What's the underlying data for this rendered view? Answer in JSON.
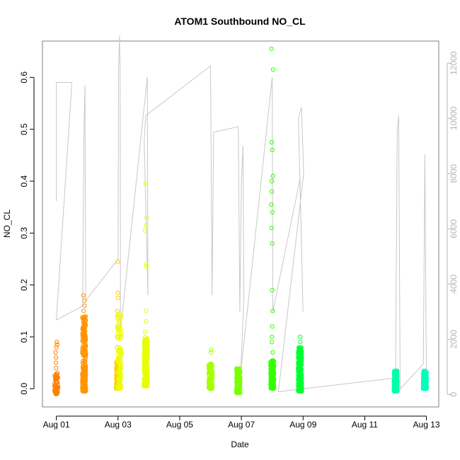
{
  "chart_data": {
    "type": "scatter",
    "title": "ATOM1 Southbound NO_CL",
    "xlabel": "Date",
    "ylabel": "NO_CL",
    "x_tick_labels": [
      "Aug 01",
      "Aug 03",
      "Aug 05",
      "Aug 07",
      "Aug 09",
      "Aug 11",
      "Aug 13"
    ],
    "x_tick_days": [
      1,
      3,
      5,
      7,
      9,
      11,
      13
    ],
    "x_range_days": [
      0.55,
      13.4
    ],
    "ylim": [
      -0.035,
      0.67
    ],
    "y_ticks": [
      "0.0",
      "0.1",
      "0.2",
      "0.3",
      "0.4",
      "0.5",
      "0.6"
    ],
    "y2_ticks": [
      "0",
      "2000",
      "4000",
      "6000",
      "8000",
      "10000",
      "12000"
    ],
    "y2lim": [
      -450,
      12800
    ],
    "colors": {
      "axis": "#000000",
      "frame": "#808080",
      "secondary_line": "#c8c8c8",
      "secondary_axis": "#b5b5b5"
    },
    "scatter_clusters": [
      {
        "day": 1.0,
        "color": "#ff8000",
        "base_low": -0.01,
        "base_high": 0.03,
        "n": 70,
        "outliers": [
          0.02,
          0.04,
          0.05,
          0.06,
          0.07,
          0.08,
          0.085,
          0.09
        ]
      },
      {
        "day": 1.9,
        "color": "#ff9400",
        "base_low": -0.005,
        "base_high": 0.14,
        "n": 240,
        "outliers": [
          0.15,
          0.16,
          0.17,
          0.18
        ]
      },
      {
        "day": 3.0,
        "color": "#ffd000",
        "base_low": 0.0,
        "base_high": 0.06,
        "n": 120,
        "outliers": [
          0.08,
          0.1,
          0.12,
          0.14,
          0.15,
          0.175,
          0.185,
          0.245
        ]
      },
      {
        "day": 3.05,
        "color": "#ecff00",
        "base_low": 0.0,
        "base_high": 0.15,
        "n": 90,
        "outliers": []
      },
      {
        "day": 3.9,
        "color": "#e6ff00",
        "base_low": 0.005,
        "base_high": 0.1,
        "n": 260,
        "outliers": [
          0.11,
          0.13,
          0.15,
          0.235,
          0.24,
          0.305,
          0.315,
          0.33,
          0.395
        ]
      },
      {
        "day": 6.0,
        "color": "#a5ff00",
        "base_low": 0.0,
        "base_high": 0.05,
        "n": 120,
        "outliers": [
          0.07,
          0.075
        ]
      },
      {
        "day": 6.9,
        "color": "#7aff00",
        "base_low": -0.008,
        "base_high": 0.04,
        "n": 260,
        "outliers": []
      },
      {
        "day": 8.0,
        "color": "#33ff00",
        "base_low": 0.0,
        "base_high": 0.055,
        "n": 160,
        "outliers": [
          0.07,
          0.09,
          0.1,
          0.12,
          0.15,
          0.19,
          0.28,
          0.31,
          0.34,
          0.355,
          0.38,
          0.4,
          0.41,
          0.46,
          0.475,
          0.615,
          0.655
        ]
      },
      {
        "day": 8.9,
        "color": "#00ff33",
        "base_low": -0.005,
        "base_high": 0.08,
        "n": 320,
        "outliers": [
          0.09,
          0.1
        ]
      },
      {
        "day": 12.0,
        "color": "#00ffaa",
        "base_low": -0.005,
        "base_high": 0.035,
        "n": 180,
        "outliers": []
      },
      {
        "day": 12.95,
        "color": "#00ffbb",
        "base_low": 0.0,
        "base_high": 0.035,
        "n": 140,
        "outliers": []
      }
    ],
    "secondary_series": {
      "axis": "right",
      "units_note": "",
      "points": [
        [
          1.0,
          7000
        ],
        [
          1.0,
          11300
        ],
        [
          1.5,
          11300
        ],
        [
          1.5,
          11200
        ],
        [
          1.0,
          2700
        ],
        [
          1.85,
          3200
        ],
        [
          1.87,
          5800
        ],
        [
          1.9,
          9800
        ],
        [
          1.93,
          11200
        ],
        [
          1.95,
          3400
        ],
        [
          3.0,
          4900
        ],
        [
          3.02,
          11900
        ],
        [
          3.05,
          13000
        ],
        [
          3.07,
          11600
        ],
        [
          3.08,
          2300
        ],
        [
          3.95,
          11500
        ],
        [
          3.97,
          3600
        ],
        [
          3.85,
          9200
        ],
        [
          3.9,
          10100
        ],
        [
          6.0,
          11900
        ],
        [
          6.05,
          3600
        ],
        [
          6.1,
          9500
        ],
        [
          6.9,
          9700
        ],
        [
          6.95,
          3000
        ],
        [
          7.0,
          7700
        ],
        [
          7.05,
          9000
        ],
        [
          7.08,
          3500
        ],
        [
          6.98,
          800
        ],
        [
          8.0,
          11500
        ],
        [
          8.02,
          3000
        ],
        [
          8.9,
          7800
        ],
        [
          9.0,
          3000
        ],
        [
          8.85,
          10000
        ],
        [
          8.95,
          10400
        ],
        [
          9.02,
          8000
        ],
        [
          8.2,
          100
        ],
        [
          12.0,
          600
        ],
        [
          12.05,
          9500
        ],
        [
          12.1,
          10100
        ],
        [
          12.15,
          200
        ],
        [
          12.9,
          1100
        ],
        [
          12.95,
          8700
        ],
        [
          13.0,
          300
        ]
      ]
    }
  }
}
